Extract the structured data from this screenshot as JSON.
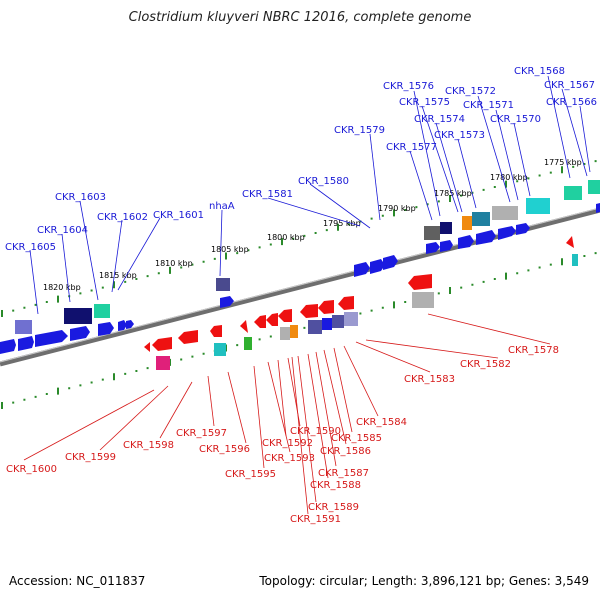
{
  "title": "Clostridium kluyveri NBRC 12016, complete genome",
  "footer": {
    "accession": "Accession: NC_011837",
    "summary": "Topology: circular; Length: 3,896,121 bp; Genes: 3,549"
  },
  "colors": {
    "top_labels": "#1a1ad6",
    "bottom_labels": "#d61a1a",
    "tick": "#2a8a2a",
    "backbone": "#7a7a7a"
  },
  "kbp_ticks": [
    "1775 kbp",
    "1780 kbp",
    "1785 kbp",
    "1790 kbp",
    "1795 kbp",
    "1800 kbp",
    "1805 kbp",
    "1810 kbp",
    "1815 kbp",
    "1820 kbp"
  ],
  "top_genes": [
    "CKR_1568",
    "CKR_1567",
    "CKR_1566",
    "CKR_1576",
    "CKR_1572",
    "CKR_1575",
    "CKR_1571",
    "CKR_1574",
    "CKR_1570",
    "CKR_1573",
    "CKR_1579",
    "CKR_1577",
    "CKR_1580",
    "CKR_1581",
    "CKR_1603",
    "nhaA",
    "CKR_1601",
    "CKR_1602",
    "CKR_1604",
    "CKR_1605"
  ],
  "bottom_genes": [
    "CKR_1578",
    "CKR_1582",
    "CKR_1583",
    "CKR_1584",
    "CKR_1585",
    "CKR_1586",
    "CKR_1587",
    "CKR_1588",
    "CKR_1589",
    "CKR_1590",
    "CKR_1591",
    "CKR_1592",
    "CKR_1593",
    "CKR_1595",
    "CKR_1596",
    "CKR_1597",
    "CKR_1598",
    "CKR_1599",
    "CKR_1600"
  ]
}
